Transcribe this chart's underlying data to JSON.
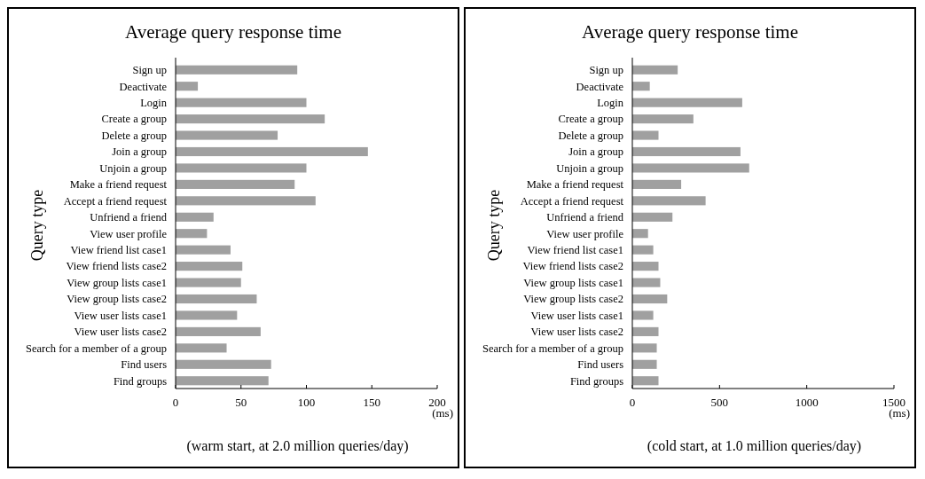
{
  "chart_data": [
    {
      "type": "bar",
      "orientation": "horizontal",
      "title": "Average query response time",
      "ylabel": "Query type",
      "categories": [
        "Sign up",
        "Deactivate",
        "Login",
        "Create a group",
        "Delete a group",
        "Join a group",
        "Unjoin a group",
        "Make a friend request",
        "Accept a friend request",
        "Unfriend a friend",
        "View user profile",
        "View friend list case1",
        "View friend lists case2",
        "View group lists case1",
        "View group lists case2",
        "View user lists case1",
        "View user lists case2",
        "Search for a member of a group",
        "Find users",
        "Find groups"
      ],
      "series": [
        {
          "color": "#a0a0a0",
          "values": [
            93,
            17,
            100,
            114,
            78,
            147,
            100,
            91,
            107,
            29,
            24,
            42,
            51,
            50,
            62,
            47,
            65,
            39,
            73,
            71
          ]
        }
      ],
      "xlim": [
        0,
        200
      ],
      "xticks": [
        0,
        50,
        100,
        150,
        200
      ],
      "grid": false,
      "annotations": [
        "(ms)",
        "(warm start, at 2.0 million queries/day)"
      ]
    },
    {
      "type": "bar",
      "orientation": "horizontal",
      "title": "Average query response time",
      "ylabel": "Query type",
      "categories": [
        "Sign up",
        "Deactivate",
        "Login",
        "Create a group",
        "Delete a group",
        "Join a group",
        "Unjoin a group",
        "Make a friend request",
        "Accept a friend request",
        "Unfriend a friend",
        "View user profile",
        "View friend list case1",
        "View friend lists case2",
        "View group lists case1",
        "View group lists case2",
        "View user lists case1",
        "View user lists case2",
        "Search for a member of a group",
        "Find users",
        "Find groups"
      ],
      "series": [
        {
          "color": "#a0a0a0",
          "values": [
            260,
            100,
            630,
            350,
            150,
            620,
            670,
            280,
            420,
            230,
            90,
            120,
            150,
            160,
            200,
            120,
            150,
            140,
            140,
            150
          ]
        }
      ],
      "xlim": [
        0,
        1500
      ],
      "xticks": [
        0,
        500,
        1000,
        1500
      ],
      "grid": false,
      "annotations": [
        "(ms)",
        "(cold start, at 1.0 million queries/day)"
      ]
    }
  ]
}
